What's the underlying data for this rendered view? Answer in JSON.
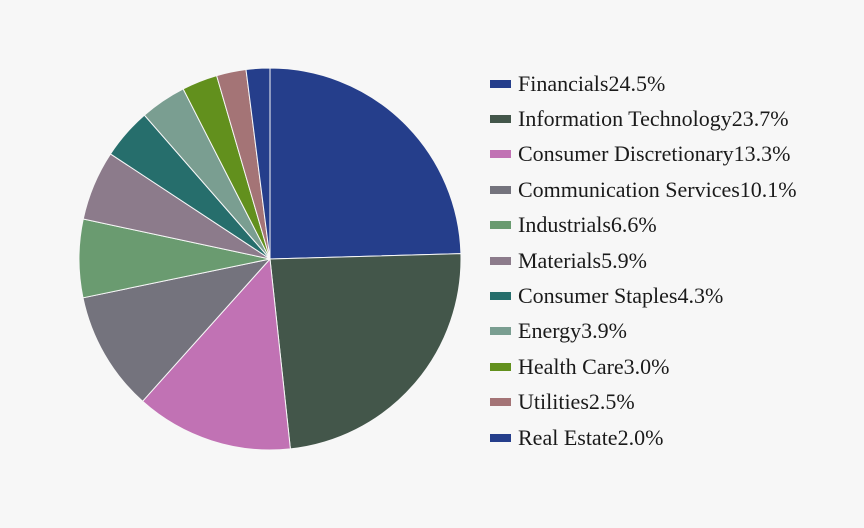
{
  "chart_data": {
    "type": "pie",
    "title": "",
    "legend_position": "right",
    "start": "top, clockwise",
    "slices": [
      {
        "label": "Financials",
        "value": 24.5,
        "value_label": "24.5%",
        "color": "#253e8b"
      },
      {
        "label": "Information Technology",
        "value": 23.7,
        "value_label": "23.7%",
        "color": "#43564a"
      },
      {
        "label": "Consumer Discretionary",
        "value": 13.3,
        "value_label": "13.3%",
        "color": "#c172b4"
      },
      {
        "label": "Communication Services",
        "value": 10.1,
        "value_label": "10.1%",
        "color": "#74737d"
      },
      {
        "label": "Industrials",
        "value": 6.6,
        "value_label": "6.6%",
        "color": "#6a9b70"
      },
      {
        "label": "Materials",
        "value": 5.9,
        "value_label": "5.9%",
        "color": "#8c7b8b"
      },
      {
        "label": "Consumer Staples",
        "value": 4.3,
        "value_label": "4.3%",
        "color": "#266e6c"
      },
      {
        "label": "Energy",
        "value": 3.9,
        "value_label": "3.9%",
        "color": "#7a9e91"
      },
      {
        "label": "Health Care",
        "value": 3.0,
        "value_label": "3.0%",
        "color": "#62901d"
      },
      {
        "label": "Utilities",
        "value": 2.5,
        "value_label": "2.5%",
        "color": "#a47476"
      },
      {
        "label": "Real Estate",
        "value": 2.0,
        "value_label": "2.0%",
        "color": "#253e8b"
      }
    ]
  }
}
